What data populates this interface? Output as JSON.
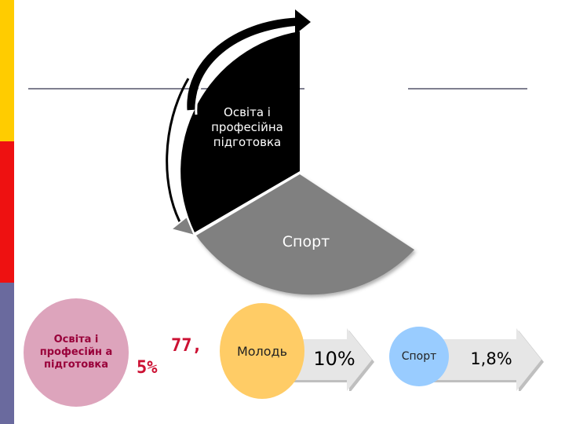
{
  "colors": {
    "stripe_top": "#ffcc00",
    "stripe_middle": "#ee1111",
    "stripe_bottom": "#6a6a9e",
    "line": "#7f7f8f",
    "pie_education": "#000000",
    "pie_sport": "#808080",
    "circle_education": "#dda4bc",
    "circle_youth": "#ffcc66",
    "circle_sport": "#99ccff",
    "arrow": "#d9d9d9",
    "arrow_shadow": "#bfbfbf",
    "pct_text": "#cc1133"
  },
  "pie": {
    "education_label": "Освіта і професійна підготовка",
    "sport_label": "Спорт"
  },
  "bottom": {
    "education": {
      "label": "Освіта і професійн а підготовка",
      "value_line1": "77,",
      "value_line2": "5%"
    },
    "youth": {
      "label": "Молодь",
      "value": "10%"
    },
    "sport": {
      "label": "Спорт",
      "value": "1,8%"
    }
  },
  "icons": {
    "curved_arrow_up": "curved-arrow-up-icon",
    "curved_arrow_down": "curved-arrow-down-icon"
  }
}
